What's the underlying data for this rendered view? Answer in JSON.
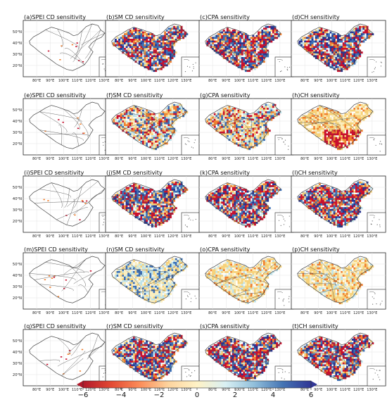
{
  "panels": [
    {
      "id": "a",
      "title": "(a)SPEI CD sensitivity",
      "fill": "none"
    },
    {
      "id": "b",
      "title": "(b)SM CD sensitivity",
      "fill": "mixed"
    },
    {
      "id": "c",
      "title": "(c)CPA sensitivity",
      "fill": "mixed"
    },
    {
      "id": "d",
      "title": "(d)CH sensitivity",
      "fill": "mixed"
    },
    {
      "id": "e",
      "title": "(e)SPEI CD sensitivity",
      "fill": "none"
    },
    {
      "id": "f",
      "title": "(f)SM CD sensitivity",
      "fill": "mixed-light"
    },
    {
      "id": "g",
      "title": "(g)CPA sensitivity",
      "fill": "mixed-light"
    },
    {
      "id": "h",
      "title": "(h)CH sensitivity",
      "fill": "warm"
    },
    {
      "id": "i",
      "title": "(i)SPEI CD sensitivity",
      "fill": "none"
    },
    {
      "id": "j",
      "title": "(j)SM CD sensitivity",
      "fill": "mixed"
    },
    {
      "id": "k",
      "title": "(k)CPA sensitivity",
      "fill": "mixed"
    },
    {
      "id": "l",
      "title": "(l)CH sensitivity",
      "fill": "mixed"
    },
    {
      "id": "m",
      "title": "(m)SPEI CD sensitivity",
      "fill": "none"
    },
    {
      "id": "n",
      "title": "(n)SM CD sensitivity",
      "fill": "cool-light"
    },
    {
      "id": "o",
      "title": "(o)CPA sensitivity",
      "fill": "warm-light"
    },
    {
      "id": "p",
      "title": "(p)CH sensitivity",
      "fill": "warm-light"
    },
    {
      "id": "q",
      "title": "(q)SPEI CD sensitivity",
      "fill": "none"
    },
    {
      "id": "r",
      "title": "(r)SM CD sensitivity",
      "fill": "mixed"
    },
    {
      "id": "s",
      "title": "(s)CPA sensitivity",
      "fill": "mixed"
    },
    {
      "id": "t",
      "title": "(t)CH sensitivity",
      "fill": "mixed"
    }
  ],
  "lat_labels": [
    "50°N",
    "40°N",
    "30°N",
    "20°N"
  ],
  "lon_labels": [
    "80°E",
    "90°E",
    "100°E",
    "110°E",
    "120°E",
    "130°E"
  ],
  "colorbar": {
    "ticks": [
      "−6",
      "−4",
      "−2",
      "0",
      "2",
      "4",
      "6"
    ],
    "colors": [
      "#b2182b",
      "#e34a33",
      "#fc8d59",
      "#fdd49e",
      "#fff2c6",
      "#d9f0f3",
      "#91bfdb",
      "#4575b4",
      "#313695"
    ]
  },
  "colors": {
    "red": "#c8102e",
    "orange": "#f08030",
    "yellow": "#f7d27a",
    "pale": "#fbeebf",
    "cyan": "#bfe3ea",
    "blue": "#3b6fb6",
    "navy": "#27338f",
    "border": "#555555"
  }
}
